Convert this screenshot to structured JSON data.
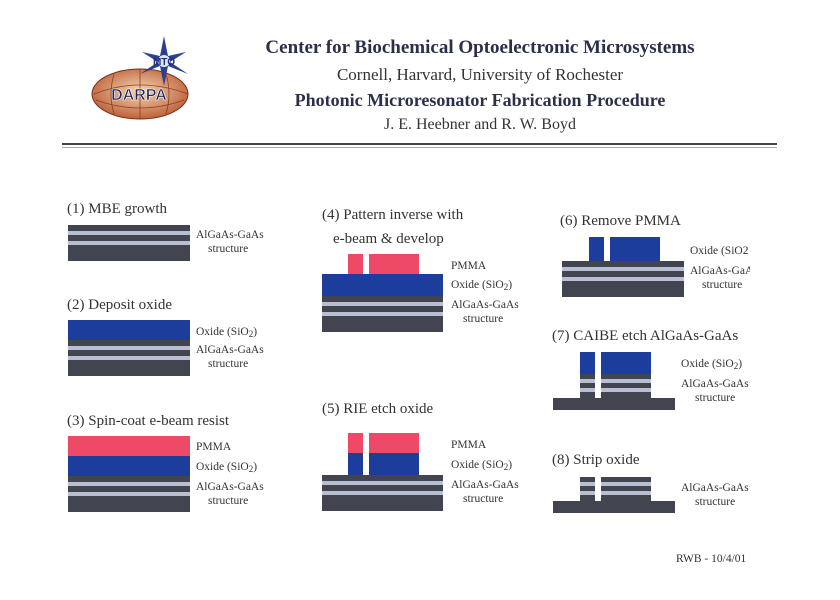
{
  "header": {
    "logo_top_text": "MTO",
    "logo_bottom_text": "DARPA",
    "title": "Center for Biochemical Optoelectronic Microsystems",
    "institutions": "Cornell, Harvard, University of Rochester",
    "subtitle": "Photonic Microresonator Fabrication Procedure",
    "authors": "J. E. Heebner and R. W. Boyd"
  },
  "labels": {
    "algaas": "AlGaAs-GaAs",
    "algaas_cut": "AlGaAs-GaA",
    "structure": "structure",
    "oxide_pre": "Oxide (SiO",
    "oxide_sub": "2",
    "oxide_post": ")",
    "oxide_cut": "Oxide (SiO",
    "pmma": "PMMA"
  },
  "steps": [
    {
      "label": "(1) MBE growth"
    },
    {
      "label": "(2) Deposit oxide"
    },
    {
      "label": "(3) Spin-coat e-beam resist"
    },
    {
      "label": "(4) Pattern inverse with",
      "label2": "e-beam & develop"
    },
    {
      "label": "(5) RIE etch oxide"
    },
    {
      "label": "(6) Remove PMMA"
    },
    {
      "label": "(7) CAIBE etch AlGaAs-GaAs"
    },
    {
      "label": "(8) Strip oxide"
    }
  ],
  "colors": {
    "oxide": "#1c3d9b",
    "pmma": "#ef4968",
    "substrate": "#42444f",
    "stripe": "#b9bfd2"
  },
  "footer": {
    "credit": "RWB - 10/4/01"
  }
}
